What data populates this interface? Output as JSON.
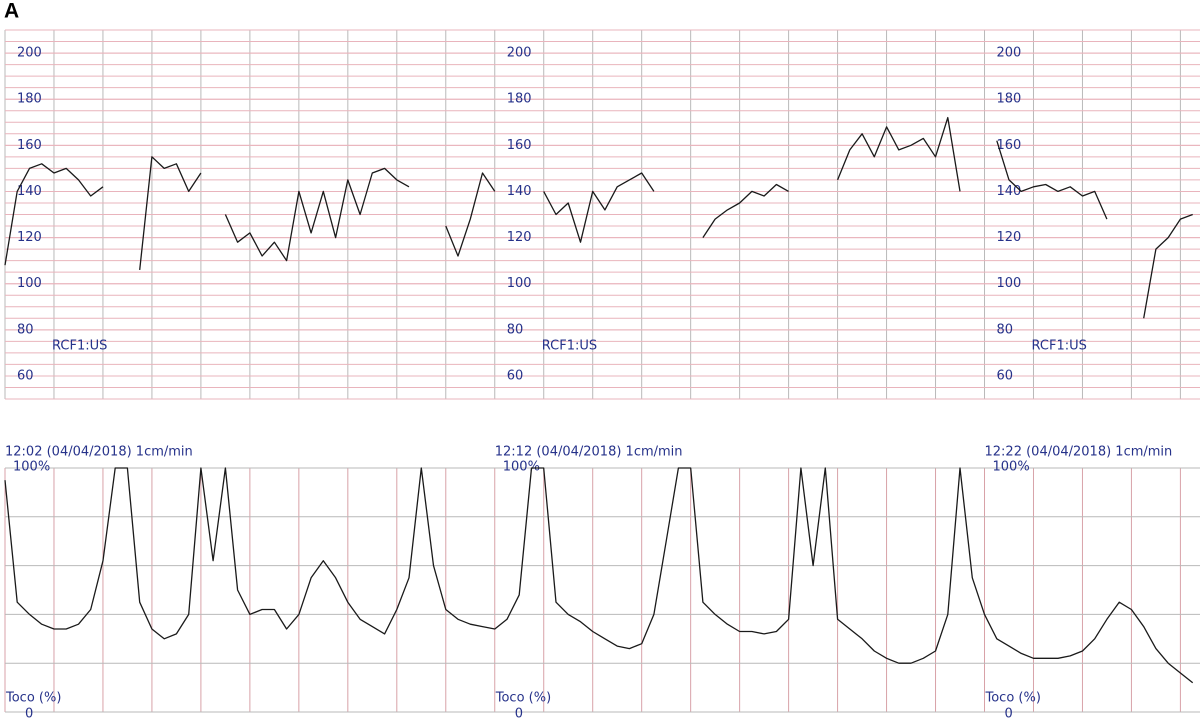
{
  "panel_label": "A",
  "chart_data": [
    {
      "type": "line",
      "y_label": "RCF1:US",
      "color": "#1a1a1a",
      "xlim": [
        0,
        24.4
      ],
      "ylim": [
        50,
        210
      ],
      "yticks": [
        60,
        80,
        100,
        120,
        140,
        160,
        180,
        200
      ],
      "x": [
        0,
        0.25,
        0.5,
        0.75,
        1,
        1.25,
        1.5,
        1.75,
        2,
        2.25,
        2.5,
        2.75,
        3,
        3.25,
        3.5,
        3.75,
        4,
        4.25,
        4.5,
        4.75,
        5,
        5.25,
        5.5,
        5.75,
        6,
        6.25,
        6.5,
        6.75,
        7,
        7.25,
        7.5,
        7.75,
        8,
        8.25,
        8.5,
        8.75,
        9,
        9.25,
        9.5,
        9.75,
        10,
        10.25,
        10.5,
        10.75,
        11,
        11.25,
        11.5,
        11.75,
        12,
        12.25,
        12.5,
        12.75,
        13,
        13.25,
        13.5,
        13.75,
        14,
        14.25,
        14.5,
        14.75,
        15,
        15.25,
        15.5,
        15.75,
        16,
        16.25,
        16.5,
        16.75,
        17,
        17.25,
        17.5,
        17.75,
        18,
        18.25,
        18.5,
        18.75,
        19,
        19.25,
        19.5,
        19.75,
        20,
        20.25,
        20.5,
        20.75,
        21,
        21.25,
        21.5,
        21.75,
        22,
        22.25,
        22.5,
        22.75,
        23,
        23.25,
        23.5,
        23.75,
        24,
        24.25
      ],
      "values": [
        108,
        140,
        150,
        152,
        148,
        150,
        145,
        138,
        142,
        null,
        null,
        106,
        155,
        150,
        152,
        140,
        148,
        null,
        130,
        118,
        122,
        112,
        118,
        110,
        140,
        122,
        140,
        120,
        145,
        130,
        148,
        150,
        145,
        142,
        null,
        null,
        125,
        112,
        128,
        148,
        140,
        null,
        null,
        null,
        140,
        130,
        135,
        118,
        140,
        132,
        142,
        145,
        148,
        140,
        null,
        null,
        null,
        120,
        128,
        132,
        135,
        140,
        138,
        143,
        140,
        null,
        null,
        null,
        145,
        158,
        165,
        155,
        168,
        158,
        160,
        163,
        155,
        172,
        140,
        null,
        null,
        162,
        145,
        140,
        142,
        143,
        140,
        142,
        138,
        140,
        128,
        null,
        null,
        85,
        115,
        120,
        128,
        130
      ]
    },
    {
      "type": "line",
      "y_label": "Toco (%)",
      "color": "#1a1a1a",
      "xlim": [
        0,
        24.4
      ],
      "ylim": [
        0,
        100
      ],
      "yticks": [
        0,
        {
          "value": 100,
          "label": "100%"
        }
      ],
      "xticks": [
        {
          "value": 0,
          "label": "12:02 (04/04/2018) 1cm/min"
        },
        {
          "value": 10,
          "label": "12:12 (04/04/2018) 1cm/min"
        },
        {
          "value": 20,
          "label": "12:22 (04/04/2018) 1cm/min"
        }
      ],
      "x": [
        0,
        0.25,
        0.5,
        0.75,
        1,
        1.25,
        1.5,
        1.75,
        2,
        2.25,
        2.5,
        2.75,
        3,
        3.25,
        3.5,
        3.75,
        4,
        4.25,
        4.5,
        4.75,
        5,
        5.25,
        5.5,
        5.75,
        6,
        6.25,
        6.5,
        6.75,
        7,
        7.25,
        7.5,
        7.75,
        8,
        8.25,
        8.5,
        8.75,
        9,
        9.25,
        9.5,
        9.75,
        10,
        10.25,
        10.5,
        10.75,
        11,
        11.25,
        11.5,
        11.75,
        12,
        12.25,
        12.5,
        12.75,
        13,
        13.25,
        13.5,
        13.75,
        14,
        14.25,
        14.5,
        14.75,
        15,
        15.25,
        15.5,
        15.75,
        16,
        16.25,
        16.5,
        16.75,
        17,
        17.25,
        17.5,
        17.75,
        18,
        18.25,
        18.5,
        18.75,
        19,
        19.25,
        19.5,
        19.75,
        20,
        20.25,
        20.5,
        20.75,
        21,
        21.25,
        21.5,
        21.75,
        22,
        22.25,
        22.5,
        22.75,
        23,
        23.25,
        23.5,
        23.75,
        24,
        24.25
      ],
      "values": [
        95,
        45,
        40,
        36,
        34,
        34,
        36,
        42,
        62,
        100,
        100,
        45,
        34,
        30,
        32,
        40,
        100,
        62,
        100,
        50,
        40,
        42,
        42,
        34,
        40,
        55,
        62,
        55,
        45,
        38,
        35,
        32,
        42,
        55,
        100,
        60,
        42,
        38,
        36,
        35,
        34,
        38,
        48,
        100,
        100,
        45,
        40,
        37,
        33,
        30,
        27,
        26,
        28,
        40,
        70,
        100,
        100,
        45,
        40,
        36,
        33,
        33,
        32,
        33,
        38,
        100,
        60,
        100,
        38,
        34,
        30,
        25,
        22,
        20,
        20,
        22,
        25,
        40,
        100,
        55,
        40,
        30,
        27,
        24,
        22,
        22,
        22,
        23,
        25,
        30,
        38,
        45,
        42,
        35,
        26,
        20,
        16,
        12
      ]
    }
  ]
}
